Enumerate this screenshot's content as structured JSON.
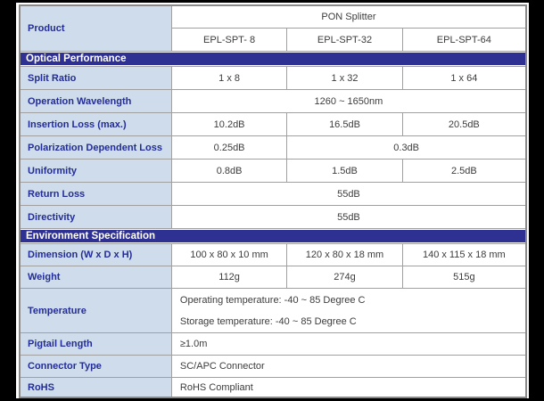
{
  "colors": {
    "section_bar_bg": "#2e3192",
    "label_cell_bg": "#cfdceb",
    "label_text": "#232d96",
    "value_text": "#3c3c3c",
    "grid_line": "#a0a0a0",
    "outer_border": "#8a8a8a",
    "frame_bg": "#000000"
  },
  "header": {
    "product_label": "Product",
    "group_label": "PON Splitter",
    "models": [
      "EPL-SPT- 8",
      "EPL-SPT-32",
      "EPL-SPT-64"
    ]
  },
  "sections": {
    "optical": {
      "title": "Optical Performance"
    },
    "environment": {
      "title": "Environment Specification"
    }
  },
  "rows": {
    "split_ratio": {
      "label": "Split Ratio",
      "values": [
        "1 x 8",
        "1 x 32",
        "1 x 64"
      ]
    },
    "operation_wavelength": {
      "label": "Operation Wavelength",
      "value": "1260 ~ 1650nm"
    },
    "insertion_loss": {
      "label": "Insertion Loss (max.)",
      "values": [
        "10.2dB",
        "16.5dB",
        "20.5dB"
      ]
    },
    "polarization_dependent_loss": {
      "label": "Polarization Dependent Loss",
      "value_spt8": "0.25dB",
      "value_spt32_64": "0.3dB"
    },
    "uniformity": {
      "label": "Uniformity",
      "values": [
        "0.8dB",
        "1.5dB",
        "2.5dB"
      ]
    },
    "return_loss": {
      "label": "Return Loss",
      "value": "55dB"
    },
    "directivity": {
      "label": "Directivity",
      "value": "55dB"
    },
    "dimension": {
      "label": "Dimension (W x D x H)",
      "values": [
        "100 x 80 x 10 mm",
        "120 x 80 x 18 mm",
        "140 x 115 x 18 mm"
      ]
    },
    "weight": {
      "label": "Weight",
      "values": [
        "112g",
        "274g",
        "515g"
      ]
    },
    "temperature": {
      "label": "Temperature",
      "line1": "Operating temperature: -40 ~ 85 Degree C",
      "line2": "Storage temperature: -40 ~ 85 Degree C"
    },
    "pigtail_length": {
      "label": "Pigtail Length",
      "value": "≥1.0m"
    },
    "connector_type": {
      "label": "Connector Type",
      "value": "SC/APC Connector"
    },
    "rohs": {
      "label": "RoHS",
      "value": "RoHS Compliant"
    }
  }
}
